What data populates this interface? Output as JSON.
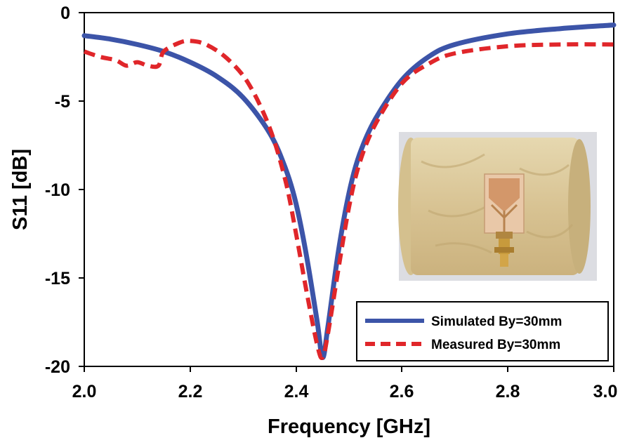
{
  "chart_data": {
    "type": "line",
    "title": "",
    "xlabel": "Frequency [GHz]",
    "ylabel": "S11 [dB]",
    "xlim": [
      2.0,
      3.0
    ],
    "ylim": [
      -20,
      0
    ],
    "x_ticks": [
      "2.0",
      "2.2",
      "2.4",
      "2.6",
      "2.8",
      "3.0"
    ],
    "y_ticks": [
      "0",
      "-5",
      "-10",
      "-15",
      "-20"
    ],
    "grid": false,
    "legend_position": "bottom-right",
    "inset": "photograph of the fabricated antenna on a cylindrical foam substrate with SMA connector",
    "series": [
      {
        "name": "Simulated By=30mm",
        "color": "#3c54a8",
        "style": "solid",
        "x": [
          2.0,
          2.05,
          2.1,
          2.15,
          2.2,
          2.25,
          2.3,
          2.35,
          2.38,
          2.4,
          2.42,
          2.44,
          2.45,
          2.46,
          2.48,
          2.5,
          2.52,
          2.55,
          2.6,
          2.65,
          2.7,
          2.8,
          2.9,
          3.0
        ],
        "y": [
          -1.3,
          -1.5,
          -1.8,
          -2.2,
          -2.8,
          -3.6,
          -4.8,
          -6.8,
          -8.8,
          -10.8,
          -13.8,
          -17.5,
          -19.5,
          -17.8,
          -13.5,
          -10.2,
          -8.0,
          -6.0,
          -3.8,
          -2.5,
          -1.8,
          -1.2,
          -0.9,
          -0.7
        ]
      },
      {
        "name": "Measured By=30mm",
        "color": "#e0262a",
        "style": "dashed",
        "x": [
          2.0,
          2.03,
          2.06,
          2.08,
          2.1,
          2.12,
          2.14,
          2.15,
          2.18,
          2.2,
          2.23,
          2.27,
          2.31,
          2.35,
          2.38,
          2.4,
          2.42,
          2.44,
          2.45,
          2.46,
          2.48,
          2.5,
          2.52,
          2.55,
          2.6,
          2.65,
          2.7,
          2.8,
          2.9,
          3.0
        ],
        "y": [
          -2.2,
          -2.5,
          -2.7,
          -3.0,
          -2.8,
          -3.0,
          -3.0,
          -2.2,
          -1.7,
          -1.6,
          -1.8,
          -2.6,
          -4.0,
          -6.5,
          -9.5,
          -12.5,
          -15.8,
          -18.8,
          -19.5,
          -18.2,
          -14.5,
          -11.0,
          -8.5,
          -6.3,
          -4.0,
          -2.9,
          -2.3,
          -1.9,
          -1.8,
          -1.8
        ]
      }
    ]
  }
}
